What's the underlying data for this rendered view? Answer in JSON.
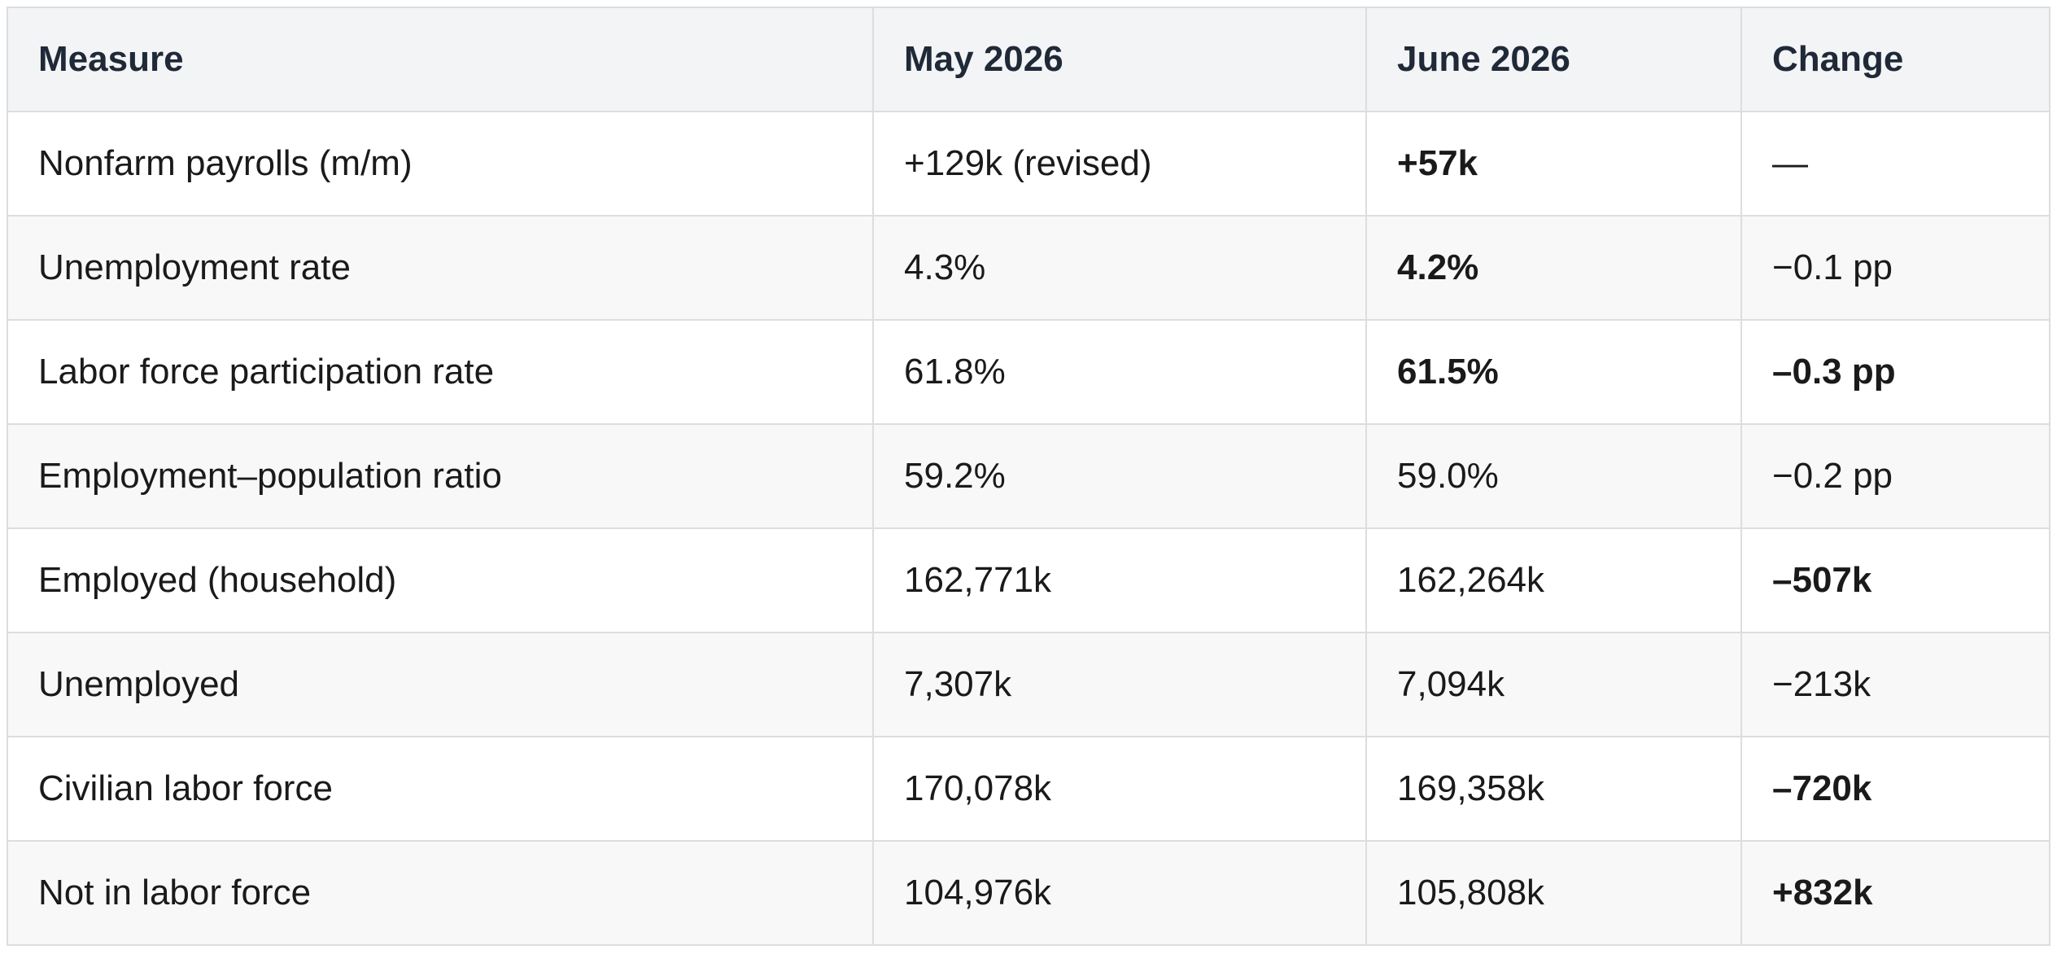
{
  "table": {
    "header": [
      "Measure",
      "May 2026",
      "June 2026",
      "Change"
    ],
    "rows": [
      [
        "Nonfarm payrolls (m/m)",
        "+129k (revised)",
        "+57k",
        "—"
      ],
      [
        "Unemployment rate",
        "4.3%",
        "4.2%",
        "−0.1 pp"
      ],
      [
        "Labor force participation rate",
        "61.8%",
        "61.5%",
        "–0.3 pp"
      ],
      [
        "Employment–population ratio",
        "59.2%",
        "59.0%",
        "−0.2 pp"
      ],
      [
        "Employed (household)",
        "162,771k",
        "162,264k",
        "–507k"
      ],
      [
        "Unemployed",
        "7,307k",
        "7,094k",
        "−213k"
      ],
      [
        "Civilian labor force",
        "170,078k",
        "169,358k",
        "–720k"
      ],
      [
        "Not in labor force",
        "104,976k",
        "105,808k",
        "+832k"
      ]
    ]
  }
}
